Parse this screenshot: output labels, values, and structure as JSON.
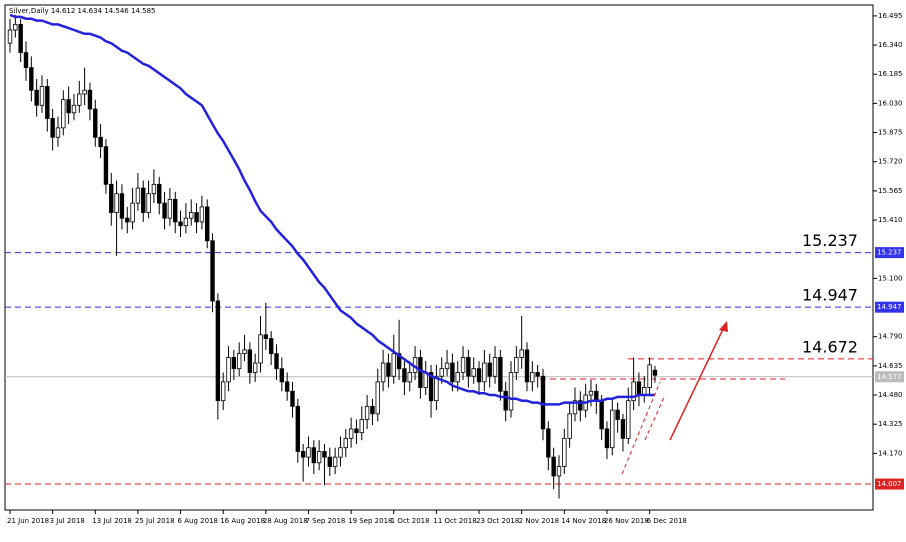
{
  "chart_data": {
    "type": "candlestick",
    "title": "Silver,Daily  14.612 14.634 14.546 14.585",
    "categories": [
      "21 Jun 2018",
      null,
      null,
      null,
      null,
      null,
      null,
      null,
      "3 Jul 2018",
      null,
      null,
      null,
      null,
      null,
      null,
      null,
      "13 Jul 2018",
      null,
      null,
      null,
      null,
      null,
      null,
      null,
      "25 Jul 2018",
      null,
      null,
      null,
      null,
      null,
      null,
      null,
      "6 Aug 2018",
      null,
      null,
      null,
      null,
      null,
      null,
      null,
      "16 Aug 2018",
      null,
      null,
      null,
      null,
      null,
      null,
      null,
      "28 Aug 2018",
      null,
      null,
      null,
      null,
      null,
      null,
      null,
      "7 Sep 2018",
      null,
      null,
      null,
      null,
      null,
      null,
      null,
      "19 Sep 2018",
      null,
      null,
      null,
      null,
      null,
      null,
      null,
      "1 Oct 2018",
      null,
      null,
      null,
      null,
      null,
      null,
      null,
      "11 Oct 2018",
      null,
      null,
      null,
      null,
      null,
      null,
      null,
      "23 Oct 2018",
      null,
      null,
      null,
      null,
      null,
      null,
      null,
      "2 Nov 2018",
      null,
      null,
      null,
      null,
      null,
      null,
      null,
      "14 Nov 2018",
      null,
      null,
      null,
      null,
      null,
      null,
      null,
      "26 Nov 2018",
      null,
      null,
      null,
      null,
      null,
      null,
      null,
      "6 Dec 2018",
      null
    ],
    "candles": [
      [
        16.35,
        16.48,
        16.3,
        16.42
      ],
      [
        16.42,
        16.5,
        16.38,
        16.45
      ],
      [
        16.45,
        16.48,
        16.25,
        16.3
      ],
      [
        16.3,
        16.36,
        16.15,
        16.22
      ],
      [
        16.22,
        16.28,
        16.04,
        16.1
      ],
      [
        16.1,
        16.16,
        15.96,
        16.02
      ],
      [
        16.02,
        16.18,
        15.98,
        16.12
      ],
      [
        16.12,
        16.16,
        15.88,
        15.95
      ],
      [
        15.95,
        16.0,
        15.78,
        15.85
      ],
      [
        15.85,
        15.96,
        15.8,
        15.9
      ],
      [
        15.9,
        16.1,
        15.86,
        16.05
      ],
      [
        16.05,
        16.12,
        15.92,
        15.98
      ],
      [
        15.98,
        16.08,
        15.94,
        16.02
      ],
      [
        16.02,
        16.15,
        15.98,
        16.08
      ],
      [
        16.08,
        16.22,
        16.02,
        16.1
      ],
      [
        16.1,
        16.14,
        15.94,
        16.0
      ],
      [
        16.0,
        16.05,
        15.8,
        15.85
      ],
      [
        15.85,
        15.92,
        15.74,
        15.8
      ],
      [
        15.8,
        15.84,
        15.55,
        15.6
      ],
      [
        15.6,
        15.66,
        15.38,
        15.45
      ],
      [
        15.45,
        15.62,
        15.22,
        15.55
      ],
      [
        15.55,
        15.6,
        15.36,
        15.42
      ],
      [
        15.42,
        15.48,
        15.34,
        15.4
      ],
      [
        15.4,
        15.58,
        15.36,
        15.5
      ],
      [
        15.5,
        15.66,
        15.46,
        15.58
      ],
      [
        15.58,
        15.62,
        15.4,
        15.45
      ],
      [
        15.45,
        15.62,
        15.42,
        15.55
      ],
      [
        15.55,
        15.68,
        15.5,
        15.6
      ],
      [
        15.6,
        15.64,
        15.44,
        15.5
      ],
      [
        15.5,
        15.56,
        15.36,
        15.42
      ],
      [
        15.42,
        15.58,
        15.38,
        15.52
      ],
      [
        15.52,
        15.56,
        15.34,
        15.4
      ],
      [
        15.4,
        15.46,
        15.32,
        15.38
      ],
      [
        15.38,
        15.5,
        15.34,
        15.42
      ],
      [
        15.42,
        15.52,
        15.38,
        15.45
      ],
      [
        15.45,
        15.5,
        15.34,
        15.4
      ],
      [
        15.4,
        15.54,
        15.36,
        15.48
      ],
      [
        15.48,
        15.52,
        15.26,
        15.3
      ],
      [
        15.3,
        15.34,
        14.92,
        14.98
      ],
      [
        14.98,
        15.02,
        14.35,
        14.45
      ],
      [
        14.45,
        14.6,
        14.4,
        14.55
      ],
      [
        14.55,
        14.74,
        14.5,
        14.68
      ],
      [
        14.68,
        14.72,
        14.56,
        14.62
      ],
      [
        14.62,
        14.76,
        14.58,
        14.7
      ],
      [
        14.7,
        14.8,
        14.66,
        14.72
      ],
      [
        14.72,
        14.76,
        14.54,
        14.6
      ],
      [
        14.6,
        14.7,
        14.55,
        14.65
      ],
      [
        14.65,
        14.9,
        14.6,
        14.8
      ],
      [
        14.8,
        14.97,
        14.72,
        14.78
      ],
      [
        14.78,
        14.82,
        14.64,
        14.7
      ],
      [
        14.7,
        14.75,
        14.56,
        14.62
      ],
      [
        14.62,
        14.68,
        14.5,
        14.55
      ],
      [
        14.55,
        14.6,
        14.45,
        14.5
      ],
      [
        14.5,
        14.55,
        14.36,
        14.42
      ],
      [
        14.42,
        14.46,
        14.12,
        14.18
      ],
      [
        14.18,
        14.22,
        14.02,
        14.15
      ],
      [
        14.15,
        14.26,
        14.1,
        14.2
      ],
      [
        14.2,
        14.24,
        14.06,
        14.12
      ],
      [
        14.12,
        14.24,
        14.08,
        14.18
      ],
      [
        14.18,
        14.22,
        14.0,
        14.15
      ],
      [
        14.15,
        14.2,
        14.05,
        14.1
      ],
      [
        14.1,
        14.2,
        14.06,
        14.15
      ],
      [
        14.15,
        14.26,
        14.1,
        14.2
      ],
      [
        14.2,
        14.3,
        14.15,
        14.25
      ],
      [
        14.25,
        14.36,
        14.2,
        14.3
      ],
      [
        14.3,
        14.35,
        14.22,
        14.28
      ],
      [
        14.28,
        14.42,
        14.24,
        14.35
      ],
      [
        14.35,
        14.48,
        14.3,
        14.42
      ],
      [
        14.42,
        14.46,
        14.32,
        14.38
      ],
      [
        14.38,
        14.62,
        14.34,
        14.55
      ],
      [
        14.55,
        14.72,
        14.5,
        14.65
      ],
      [
        14.65,
        14.7,
        14.52,
        14.58
      ],
      [
        14.58,
        14.8,
        14.54,
        14.7
      ],
      [
        14.7,
        14.88,
        14.56,
        14.62
      ],
      [
        14.62,
        14.66,
        14.48,
        14.55
      ],
      [
        14.55,
        14.66,
        14.5,
        14.6
      ],
      [
        14.6,
        14.74,
        14.56,
        14.68
      ],
      [
        14.68,
        14.72,
        14.46,
        14.52
      ],
      [
        14.52,
        14.66,
        14.48,
        14.6
      ],
      [
        14.6,
        14.64,
        14.36,
        14.45
      ],
      [
        14.45,
        14.64,
        14.4,
        14.58
      ],
      [
        14.58,
        14.68,
        14.54,
        14.62
      ],
      [
        14.62,
        14.72,
        14.58,
        14.65
      ],
      [
        14.65,
        14.7,
        14.5,
        14.55
      ],
      [
        14.55,
        14.66,
        14.5,
        14.6
      ],
      [
        14.6,
        14.74,
        14.56,
        14.68
      ],
      [
        14.68,
        14.72,
        14.52,
        14.58
      ],
      [
        14.58,
        14.68,
        14.54,
        14.62
      ],
      [
        14.62,
        14.66,
        14.48,
        14.55
      ],
      [
        14.55,
        14.72,
        14.5,
        14.65
      ],
      [
        14.65,
        14.7,
        14.52,
        14.58
      ],
      [
        14.58,
        14.74,
        14.54,
        14.68
      ],
      [
        14.68,
        14.72,
        14.45,
        14.5
      ],
      [
        14.5,
        14.55,
        14.34,
        14.4
      ],
      [
        14.4,
        14.66,
        14.36,
        14.6
      ],
      [
        14.6,
        14.74,
        14.56,
        14.68
      ],
      [
        14.68,
        14.9,
        14.62,
        14.72
      ],
      [
        14.72,
        14.76,
        14.5,
        14.55
      ],
      [
        14.55,
        14.66,
        14.5,
        14.6
      ],
      [
        14.6,
        14.64,
        14.52,
        14.58
      ],
      [
        14.58,
        14.62,
        14.24,
        14.3
      ],
      [
        14.3,
        14.34,
        14.08,
        14.15
      ],
      [
        14.15,
        14.2,
        13.98,
        14.05
      ],
      [
        14.05,
        14.16,
        13.93,
        14.1
      ],
      [
        14.1,
        14.3,
        14.06,
        14.25
      ],
      [
        14.25,
        14.44,
        14.2,
        14.38
      ],
      [
        14.38,
        14.52,
        14.34,
        14.45
      ],
      [
        14.45,
        14.5,
        14.34,
        14.4
      ],
      [
        14.4,
        14.54,
        14.36,
        14.48
      ],
      [
        14.48,
        14.56,
        14.42,
        14.5
      ],
      [
        14.5,
        14.54,
        14.38,
        14.45
      ],
      [
        14.45,
        14.48,
        14.24,
        14.3
      ],
      [
        14.3,
        14.34,
        14.14,
        14.2
      ],
      [
        14.2,
        14.46,
        14.16,
        14.4
      ],
      [
        14.4,
        14.44,
        14.28,
        14.35
      ],
      [
        14.35,
        14.38,
        14.18,
        14.25
      ],
      [
        14.25,
        14.52,
        14.22,
        14.45
      ],
      [
        14.45,
        14.68,
        14.4,
        14.55
      ],
      [
        14.55,
        14.6,
        14.42,
        14.48
      ],
      [
        14.48,
        14.58,
        14.44,
        14.52
      ],
      [
        14.52,
        14.68,
        14.48,
        14.64
      ],
      [
        14.612,
        14.634,
        14.546,
        14.585
      ]
    ],
    "ma": {
      "color": "#2222dd",
      "values": [
        16.5,
        16.49,
        16.49,
        16.48,
        16.48,
        16.47,
        16.47,
        16.46,
        16.45,
        16.45,
        16.44,
        16.43,
        16.42,
        16.41,
        16.4,
        16.4,
        16.39,
        16.38,
        16.36,
        16.35,
        16.33,
        16.31,
        16.3,
        16.28,
        16.26,
        16.24,
        16.23,
        16.21,
        16.19,
        16.17,
        16.15,
        16.13,
        16.11,
        16.08,
        16.06,
        16.04,
        16.02,
        15.97,
        15.92,
        15.87,
        15.83,
        15.78,
        15.73,
        15.68,
        15.62,
        15.57,
        15.51,
        15.46,
        15.43,
        15.4,
        15.36,
        15.33,
        15.3,
        15.27,
        15.23,
        15.2,
        15.16,
        15.12,
        15.08,
        15.05,
        15.01,
        14.97,
        14.93,
        14.91,
        14.89,
        14.86,
        14.84,
        14.82,
        14.8,
        14.77,
        14.75,
        14.73,
        14.71,
        14.69,
        14.67,
        14.65,
        14.63,
        14.61,
        14.6,
        14.58,
        14.57,
        14.56,
        14.55,
        14.53,
        14.52,
        14.51,
        14.5,
        14.5,
        14.49,
        14.49,
        14.48,
        14.48,
        14.47,
        14.47,
        14.46,
        14.46,
        14.45,
        14.45,
        14.44,
        14.44,
        14.43,
        14.43,
        14.43,
        14.43,
        14.44,
        14.44,
        14.44,
        14.44,
        14.44,
        14.45,
        14.45,
        14.45,
        14.46,
        14.46,
        14.47,
        14.47,
        14.47,
        14.47,
        14.48,
        14.48,
        14.48,
        14.48
      ]
    },
    "ylim": [
      13.869,
      16.553
    ],
    "yticks": [
      16.495,
      {
        "value": 16.34,
        "label": "16.340"
      },
      16.185,
      {
        "value": 16.03,
        "label": "16.030"
      },
      15.875,
      {
        "value": 15.72,
        "label": "15.720"
      },
      15.565,
      {
        "value": 15.41,
        "label": "15.410"
      },
      {
        "value": 15.1,
        "label": "15.100"
      },
      {
        "value": 14.79,
        "label": "14.790"
      },
      14.635,
      {
        "value": 14.48,
        "label": "14.480"
      },
      14.325,
      {
        "value": 14.17,
        "label": "14.170"
      }
    ],
    "levels": [
      {
        "value": 15.237,
        "label": "15.237",
        "color": "#3333ee",
        "tag": true,
        "big": true
      },
      {
        "value": 14.947,
        "label": "14.947",
        "color": "#3333ee",
        "tag": true,
        "big": true
      },
      {
        "value": 14.672,
        "label": "14.672",
        "color": "#dd2222",
        "tag": false,
        "big": true
      },
      {
        "value": 14.565,
        "color": "#dd2222",
        "tag": false,
        "big": false
      },
      {
        "value": 14.577,
        "label": "14.577",
        "color": "#bbbbbb",
        "tag": true,
        "big": false
      },
      {
        "value": 14.007,
        "label": "14.007",
        "color": "#dd2222",
        "tag": true,
        "big": false
      }
    ]
  }
}
